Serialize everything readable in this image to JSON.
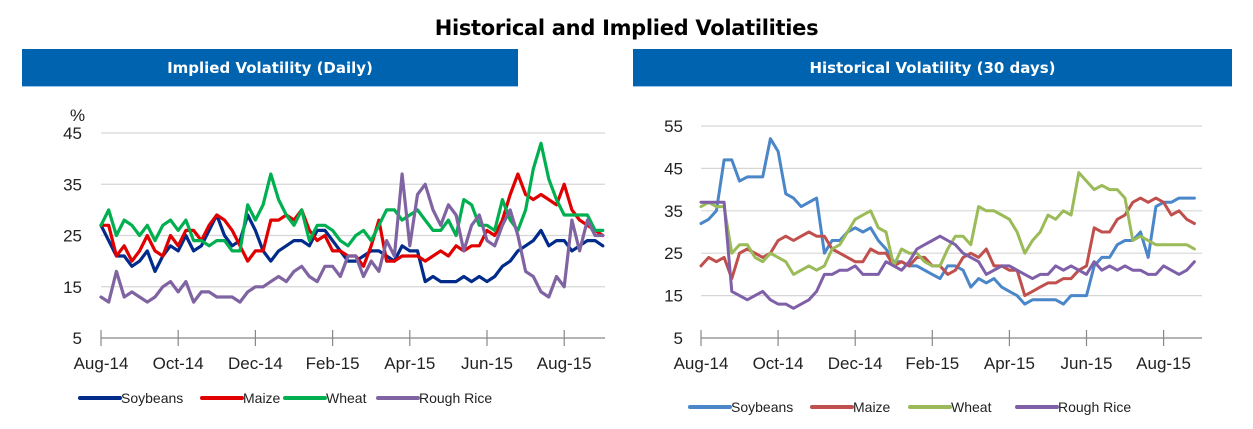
{
  "title": "Historical and Implied Volatilities",
  "chart_data": [
    {
      "type": "line",
      "title": "Implied Volatility (Daily)",
      "ylabel": "%",
      "xlabel": "",
      "ylim": [
        5,
        45
      ],
      "yticks": [
        5,
        15,
        25,
        35,
        45
      ],
      "x_tick_labels": [
        "Aug-14",
        "Oct-14",
        "Dec-14",
        "Feb-15",
        "Apr-15",
        "Jun-15",
        "Aug-15"
      ],
      "x_range_months": [
        0,
        13.2
      ],
      "grid": true,
      "legend": "bottom",
      "series": [
        {
          "name": "Soybeans",
          "color": "#002B8A",
          "x": [
            0,
            0.2,
            0.4,
            0.6,
            0.8,
            1.0,
            1.2,
            1.4,
            1.6,
            1.8,
            2.0,
            2.2,
            2.4,
            2.6,
            2.8,
            3.0,
            3.2,
            3.4,
            3.6,
            3.8,
            4.0,
            4.2,
            4.4,
            4.6,
            4.8,
            5.0,
            5.2,
            5.4,
            5.6,
            5.8,
            6.0,
            6.2,
            6.4,
            6.6,
            6.8,
            7.0,
            7.2,
            7.4,
            7.6,
            7.8,
            8.0,
            8.2,
            8.4,
            8.6,
            8.8,
            9.0,
            9.2,
            9.4,
            9.6,
            9.8,
            10.0,
            10.2,
            10.4,
            10.6,
            10.8,
            11.0,
            11.2,
            11.4,
            11.6,
            11.8,
            12.0,
            12.2,
            12.4,
            12.6,
            12.8,
            13.0
          ],
          "y": [
            27,
            24,
            21,
            21,
            19,
            20,
            22,
            18,
            21,
            23,
            22,
            25,
            22,
            23,
            26,
            29,
            25,
            23,
            24,
            29,
            26,
            22,
            20,
            22,
            23,
            24,
            24,
            23,
            26,
            26,
            24,
            22,
            20,
            20,
            21,
            22,
            22,
            21,
            20,
            23,
            22,
            22,
            16,
            17,
            16,
            16,
            16,
            17,
            16,
            17,
            16,
            17,
            19,
            20,
            22,
            23,
            24,
            26,
            23,
            24,
            24,
            22,
            23,
            24,
            24,
            23
          ]
        },
        {
          "name": "Maize",
          "color": "#E00000",
          "x": [
            0,
            0.2,
            0.4,
            0.6,
            0.8,
            1.0,
            1.2,
            1.4,
            1.6,
            1.8,
            2.0,
            2.2,
            2.4,
            2.6,
            2.8,
            3.0,
            3.2,
            3.4,
            3.6,
            3.8,
            4.0,
            4.2,
            4.4,
            4.6,
            4.8,
            5.0,
            5.2,
            5.4,
            5.6,
            5.8,
            6.0,
            6.2,
            6.4,
            6.6,
            6.8,
            7.0,
            7.2,
            7.4,
            7.6,
            7.8,
            8.0,
            8.2,
            8.4,
            8.6,
            8.8,
            9.0,
            9.2,
            9.4,
            9.6,
            9.8,
            10.0,
            10.2,
            10.4,
            10.6,
            10.8,
            11.0,
            11.2,
            11.4,
            11.6,
            11.8,
            12.0,
            12.2,
            12.4,
            12.6,
            12.8,
            13.0
          ],
          "y": [
            27,
            27,
            21,
            23,
            20,
            22,
            25,
            22,
            21,
            25,
            23,
            26,
            26,
            24,
            27,
            29,
            28,
            26,
            23,
            20,
            22,
            22,
            28,
            28,
            29,
            28,
            30,
            26,
            24,
            25,
            22,
            22,
            21,
            21,
            19,
            23,
            28,
            20,
            20,
            21,
            21,
            21,
            20,
            21,
            22,
            21,
            23,
            22,
            23,
            23,
            26,
            25,
            28,
            33,
            37,
            33,
            32,
            33,
            32,
            31,
            35,
            30,
            28,
            27,
            26,
            25
          ]
        },
        {
          "name": "Wheat",
          "color": "#00B050",
          "x": [
            0,
            0.2,
            0.4,
            0.6,
            0.8,
            1.0,
            1.2,
            1.4,
            1.6,
            1.8,
            2.0,
            2.2,
            2.4,
            2.6,
            2.8,
            3.0,
            3.2,
            3.4,
            3.6,
            3.8,
            4.0,
            4.2,
            4.4,
            4.6,
            4.8,
            5.0,
            5.2,
            5.4,
            5.6,
            5.8,
            6.0,
            6.2,
            6.4,
            6.6,
            6.8,
            7.0,
            7.2,
            7.4,
            7.6,
            7.8,
            8.0,
            8.2,
            8.4,
            8.6,
            8.8,
            9.0,
            9.2,
            9.4,
            9.6,
            9.8,
            10.0,
            10.2,
            10.4,
            10.6,
            10.8,
            11.0,
            11.2,
            11.4,
            11.6,
            11.8,
            12.0,
            12.2,
            12.4,
            12.6,
            12.8,
            13.0
          ],
          "y": [
            27,
            30,
            25,
            28,
            27,
            25,
            27,
            24,
            27,
            28,
            26,
            28,
            24,
            24,
            23,
            24,
            24,
            22,
            22,
            31,
            28,
            31,
            37,
            32,
            29,
            27,
            30,
            24,
            27,
            27,
            26,
            24,
            23,
            25,
            26,
            24,
            27,
            30,
            30,
            28,
            29,
            30,
            28,
            26,
            26,
            28,
            25,
            32,
            31,
            27,
            27,
            26,
            32,
            28,
            26,
            30,
            38,
            43,
            36,
            32,
            29,
            29,
            29,
            29,
            26,
            26
          ]
        },
        {
          "name": "Rough Rice",
          "color": "#8064A2",
          "x": [
            0,
            0.2,
            0.4,
            0.6,
            0.8,
            1.0,
            1.2,
            1.4,
            1.6,
            1.8,
            2.0,
            2.2,
            2.4,
            2.6,
            2.8,
            3.0,
            3.2,
            3.4,
            3.6,
            3.8,
            4.0,
            4.2,
            4.4,
            4.6,
            4.8,
            5.0,
            5.2,
            5.4,
            5.6,
            5.8,
            6.0,
            6.2,
            6.4,
            6.6,
            6.8,
            7.0,
            7.2,
            7.4,
            7.6,
            7.8,
            8.0,
            8.2,
            8.4,
            8.6,
            8.8,
            9.0,
            9.2,
            9.4,
            9.6,
            9.8,
            10.0,
            10.2,
            10.4,
            10.6,
            10.8,
            11.0,
            11.2,
            11.4,
            11.6,
            11.8,
            12.0,
            12.2,
            12.4,
            12.6,
            12.8,
            13.0
          ],
          "y": [
            13,
            12,
            18,
            13,
            14,
            13,
            12,
            13,
            15,
            16,
            14,
            16,
            12,
            14,
            14,
            13,
            13,
            13,
            12,
            14,
            15,
            15,
            16,
            17,
            16,
            18,
            19,
            17,
            16,
            19,
            19,
            17,
            21,
            21,
            17,
            20,
            18,
            24,
            21,
            37,
            23,
            33,
            35,
            30,
            27,
            31,
            29,
            22,
            27,
            29,
            24,
            23,
            27,
            30,
            25,
            18,
            17,
            14,
            13,
            17,
            15,
            28,
            22,
            28,
            25,
            25
          ]
        }
      ]
    },
    {
      "type": "line",
      "title": "Historical Volatility (30 days)",
      "ylabel": "",
      "xlabel": "",
      "ylim": [
        5,
        55
      ],
      "yticks": [
        5,
        15,
        25,
        35,
        45,
        55
      ],
      "x_tick_labels": [
        "Aug-14",
        "Oct-14",
        "Dec-14",
        "Feb-15",
        "Apr-15",
        "Jun-15",
        "Aug-15"
      ],
      "x_range_months": [
        0,
        13.0
      ],
      "grid": true,
      "legend": "bottom",
      "series": [
        {
          "name": "Soybeans",
          "color": "#4A86C8",
          "x": [
            0,
            0.2,
            0.4,
            0.6,
            0.8,
            1.0,
            1.2,
            1.4,
            1.6,
            1.8,
            2.0,
            2.2,
            2.4,
            2.6,
            2.8,
            3.0,
            3.2,
            3.4,
            3.6,
            3.8,
            4.0,
            4.2,
            4.4,
            4.6,
            4.8,
            5.0,
            5.2,
            5.4,
            5.6,
            5.8,
            6.0,
            6.2,
            6.4,
            6.6,
            6.8,
            7.0,
            7.2,
            7.4,
            7.6,
            7.8,
            8.0,
            8.2,
            8.4,
            8.6,
            8.8,
            9.0,
            9.2,
            9.4,
            9.6,
            9.8,
            10.0,
            10.2,
            10.4,
            10.6,
            10.8,
            11.0,
            11.2,
            11.4,
            11.6,
            11.8,
            12.0,
            12.2,
            12.4,
            12.6,
            12.8
          ],
          "y": [
            32,
            33,
            35,
            47,
            47,
            42,
            43,
            43,
            43,
            52,
            49,
            39,
            38,
            36,
            37,
            38,
            25,
            28,
            28,
            30,
            31,
            30,
            31,
            28,
            26,
            23,
            23,
            22,
            22,
            21,
            20,
            19,
            22,
            22,
            21,
            17,
            19,
            18,
            19,
            17,
            16,
            15,
            13,
            14,
            14,
            14,
            14,
            13,
            15,
            15,
            15,
            22,
            24,
            24,
            27,
            28,
            28,
            30,
            24,
            36,
            37,
            37,
            38,
            38,
            38
          ]
        },
        {
          "name": "Maize",
          "color": "#C0504D",
          "x": [
            0,
            0.2,
            0.4,
            0.6,
            0.8,
            1.0,
            1.2,
            1.4,
            1.6,
            1.8,
            2.0,
            2.2,
            2.4,
            2.6,
            2.8,
            3.0,
            3.2,
            3.4,
            3.6,
            3.8,
            4.0,
            4.2,
            4.4,
            4.6,
            4.8,
            5.0,
            5.2,
            5.4,
            5.6,
            5.8,
            6.0,
            6.2,
            6.4,
            6.6,
            6.8,
            7.0,
            7.2,
            7.4,
            7.6,
            7.8,
            8.0,
            8.2,
            8.4,
            8.6,
            8.8,
            9.0,
            9.2,
            9.4,
            9.6,
            9.8,
            10.0,
            10.2,
            10.4,
            10.6,
            10.8,
            11.0,
            11.2,
            11.4,
            11.6,
            11.8,
            12.0,
            12.2,
            12.4,
            12.6,
            12.8
          ],
          "y": [
            22,
            24,
            23,
            24,
            19,
            25,
            26,
            25,
            24,
            25,
            28,
            29,
            28,
            29,
            30,
            29,
            29,
            26,
            25,
            24,
            23,
            23,
            26,
            25,
            25,
            22,
            23,
            22,
            24,
            24,
            22,
            22,
            20,
            21,
            24,
            25,
            24,
            26,
            22,
            22,
            21,
            21,
            15,
            16,
            17,
            18,
            18,
            19,
            19,
            21,
            22,
            31,
            30,
            30,
            33,
            34,
            37,
            38,
            37,
            38,
            37,
            34,
            35,
            33,
            32
          ]
        },
        {
          "name": "Wheat",
          "color": "#9BBB59",
          "x": [
            0,
            0.2,
            0.4,
            0.6,
            0.8,
            1.0,
            1.2,
            1.4,
            1.6,
            1.8,
            2.0,
            2.2,
            2.4,
            2.6,
            2.8,
            3.0,
            3.2,
            3.4,
            3.6,
            3.8,
            4.0,
            4.2,
            4.4,
            4.6,
            4.8,
            5.0,
            5.2,
            5.4,
            5.6,
            5.8,
            6.0,
            6.2,
            6.4,
            6.6,
            6.8,
            7.0,
            7.2,
            7.4,
            7.6,
            7.8,
            8.0,
            8.2,
            8.4,
            8.6,
            8.8,
            9.0,
            9.2,
            9.4,
            9.6,
            9.8,
            10.0,
            10.2,
            10.4,
            10.6,
            10.8,
            11.0,
            11.2,
            11.4,
            11.6,
            11.8,
            12.0,
            12.2,
            12.4,
            12.6,
            12.8
          ],
          "y": [
            36,
            37,
            36,
            36,
            25,
            27,
            27,
            24,
            23,
            25,
            24,
            23,
            20,
            21,
            22,
            21,
            22,
            26,
            27,
            30,
            33,
            34,
            35,
            31,
            30,
            22,
            26,
            25,
            25,
            23,
            22,
            22,
            26,
            29,
            29,
            27,
            36,
            35,
            35,
            34,
            33,
            30,
            25,
            28,
            30,
            34,
            33,
            35,
            34,
            44,
            42,
            40,
            41,
            40,
            40,
            38,
            28,
            29,
            28,
            27,
            27,
            27,
            27,
            27,
            26
          ]
        },
        {
          "name": "Rough Rice",
          "color": "#7F5FA8",
          "x": [
            0,
            0.2,
            0.4,
            0.6,
            0.8,
            1.0,
            1.2,
            1.4,
            1.6,
            1.8,
            2.0,
            2.2,
            2.4,
            2.6,
            2.8,
            3.0,
            3.2,
            3.4,
            3.6,
            3.8,
            4.0,
            4.2,
            4.4,
            4.6,
            4.8,
            5.0,
            5.2,
            5.4,
            5.6,
            5.8,
            6.0,
            6.2,
            6.4,
            6.6,
            6.8,
            7.0,
            7.2,
            7.4,
            7.6,
            7.8,
            8.0,
            8.2,
            8.4,
            8.6,
            8.8,
            9.0,
            9.2,
            9.4,
            9.6,
            9.8,
            10.0,
            10.2,
            10.4,
            10.6,
            10.8,
            11.0,
            11.2,
            11.4,
            11.6,
            11.8,
            12.0,
            12.2,
            12.4,
            12.6,
            12.8
          ],
          "y": [
            37,
            37,
            37,
            37,
            16,
            15,
            14,
            15,
            16,
            14,
            13,
            13,
            12,
            13,
            14,
            16,
            20,
            20,
            21,
            21,
            22,
            20,
            20,
            20,
            23,
            22,
            21,
            23,
            26,
            27,
            28,
            29,
            28,
            27,
            25,
            24,
            23,
            20,
            21,
            22,
            22,
            21,
            20,
            19,
            20,
            20,
            22,
            21,
            22,
            21,
            20,
            23,
            21,
            22,
            21,
            22,
            21,
            21,
            20,
            20,
            22,
            21,
            20,
            21,
            23
          ]
        }
      ]
    }
  ]
}
